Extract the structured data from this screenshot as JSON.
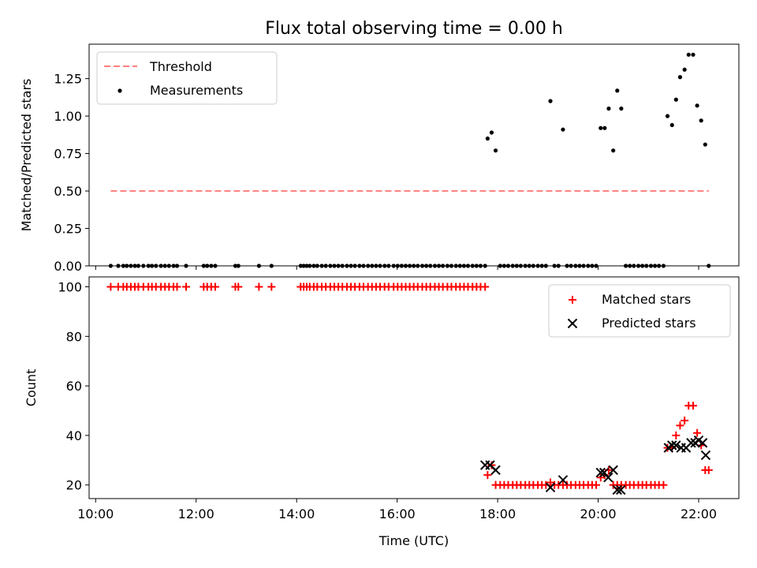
{
  "title": "Flux total observing time = 0.00 h",
  "colors": {
    "threshold": "#ff7f7f",
    "measurement": "#000000",
    "matched": "#ff0000",
    "predicted": "#000000"
  },
  "chart_data": [
    {
      "type": "scatter",
      "ylabel": "Matched/Predicted stars",
      "ylim": [
        0,
        1.48
      ],
      "xlim": [
        9.87,
        22.8
      ],
      "yticks": [
        "0.00",
        "0.25",
        "0.50",
        "0.75",
        "1.00",
        "1.25"
      ],
      "grid": false,
      "legend": {
        "position": "top-left",
        "entries": [
          "Threshold",
          "Measurements"
        ]
      },
      "threshold": {
        "name": "Threshold",
        "value": 0.5,
        "x_range": [
          10.3,
          22.2
        ]
      },
      "series": [
        {
          "name": "Measurements",
          "x": [
            10.3,
            10.45,
            10.55,
            10.62,
            10.7,
            10.78,
            10.85,
            10.95,
            11.05,
            11.12,
            11.2,
            11.3,
            11.38,
            11.46,
            11.55,
            11.62,
            11.8,
            12.15,
            12.22,
            12.3,
            12.38,
            12.78,
            12.84,
            13.25,
            13.5,
            14.08,
            14.14,
            14.2,
            14.26,
            14.34,
            14.41,
            14.5,
            14.58,
            14.67,
            14.75,
            14.83,
            14.91,
            15.0,
            15.08,
            15.16,
            15.25,
            15.33,
            15.42,
            15.5,
            15.58,
            15.66,
            15.75,
            15.83,
            15.93,
            16.01,
            16.09,
            16.17,
            16.25,
            16.33,
            16.41,
            16.5,
            16.58,
            16.66,
            16.75,
            16.83,
            16.91,
            17.0,
            17.08,
            17.17,
            17.25,
            17.33,
            17.41,
            17.5,
            17.58,
            17.66,
            17.75,
            17.8,
            17.88,
            17.96,
            18.05,
            18.13,
            18.21,
            18.3,
            18.38,
            18.46,
            18.55,
            18.63,
            18.71,
            18.8,
            18.88,
            18.96,
            19.05,
            19.13,
            19.21,
            19.3,
            19.38,
            19.46,
            19.55,
            19.63,
            19.71,
            19.8,
            19.88,
            19.96,
            20.05,
            20.13,
            20.21,
            20.3,
            20.38,
            20.46,
            20.55,
            20.63,
            20.71,
            20.8,
            20.88,
            20.96,
            21.05,
            21.13,
            21.21,
            21.3,
            21.38,
            21.47,
            21.55,
            21.63,
            21.72,
            21.8,
            21.89,
            21.97,
            22.05,
            22.13,
            22.2
          ],
          "y": [
            0,
            0,
            0,
            0,
            0,
            0,
            0,
            0,
            0,
            0,
            0,
            0,
            0,
            0,
            0,
            0,
            0,
            0,
            0,
            0,
            0,
            0,
            0,
            0,
            0,
            0,
            0,
            0,
            0,
            0,
            0,
            0,
            0,
            0,
            0,
            0,
            0,
            0,
            0,
            0,
            0,
            0,
            0,
            0,
            0,
            0,
            0,
            0,
            0,
            0,
            0,
            0,
            0,
            0,
            0,
            0,
            0,
            0,
            0,
            0,
            0,
            0,
            0,
            0,
            0,
            0,
            0,
            0,
            0,
            0,
            0,
            0.85,
            0.89,
            0.77,
            0,
            0,
            0,
            0,
            0,
            0,
            0,
            0,
            0,
            0,
            0,
            0,
            1.1,
            0,
            0,
            0.91,
            0,
            0,
            0,
            0,
            0,
            0,
            0,
            0,
            0.92,
            0.92,
            1.05,
            0.77,
            1.17,
            1.05,
            0,
            0,
            0,
            0,
            0,
            0,
            0,
            0,
            0,
            0,
            1.0,
            0.94,
            1.11,
            1.26,
            1.31,
            1.41,
            1.41,
            1.07,
            0.97,
            0.81,
            0
          ]
        }
      ]
    },
    {
      "type": "scatter",
      "xlabel": "Time (UTC)",
      "ylabel": "Count",
      "ylim": [
        14.5,
        104
      ],
      "xlim": [
        9.87,
        22.8
      ],
      "yticks": [
        "20",
        "40",
        "60",
        "80",
        "100"
      ],
      "xticks": [
        "10:00",
        "12:00",
        "14:00",
        "16:00",
        "18:00",
        "20:00",
        "22:00"
      ],
      "grid": false,
      "legend": {
        "position": "top-right",
        "entries": [
          "Matched stars",
          "Predicted stars"
        ]
      },
      "series": [
        {
          "name": "Matched stars",
          "x": [
            10.3,
            10.45,
            10.55,
            10.62,
            10.7,
            10.78,
            10.85,
            10.95,
            11.05,
            11.12,
            11.2,
            11.3,
            11.38,
            11.46,
            11.55,
            11.62,
            11.8,
            12.15,
            12.22,
            12.3,
            12.38,
            12.78,
            12.84,
            13.25,
            13.5,
            14.08,
            14.14,
            14.2,
            14.26,
            14.34,
            14.41,
            14.5,
            14.58,
            14.67,
            14.75,
            14.83,
            14.91,
            15.0,
            15.08,
            15.16,
            15.25,
            15.33,
            15.42,
            15.5,
            15.58,
            15.66,
            15.75,
            15.83,
            15.93,
            16.01,
            16.09,
            16.17,
            16.25,
            16.33,
            16.41,
            16.5,
            16.58,
            16.66,
            16.75,
            16.83,
            16.91,
            17.0,
            17.08,
            17.17,
            17.25,
            17.33,
            17.41,
            17.5,
            17.58,
            17.66,
            17.75,
            17.8,
            17.88,
            17.96,
            18.05,
            18.13,
            18.21,
            18.3,
            18.38,
            18.46,
            18.55,
            18.63,
            18.71,
            18.8,
            18.88,
            18.96,
            19.05,
            19.13,
            19.21,
            19.3,
            19.38,
            19.46,
            19.55,
            19.63,
            19.71,
            19.8,
            19.88,
            19.96,
            20.05,
            20.13,
            20.21,
            20.3,
            20.38,
            20.46,
            20.55,
            20.63,
            20.71,
            20.8,
            20.88,
            20.96,
            21.05,
            21.13,
            21.21,
            21.3,
            21.38,
            21.47,
            21.55,
            21.63,
            21.72,
            21.8,
            21.89,
            21.97,
            22.05,
            22.13,
            22.2
          ],
          "y": [
            100,
            100,
            100,
            100,
            100,
            100,
            100,
            100,
            100,
            100,
            100,
            100,
            100,
            100,
            100,
            100,
            100,
            100,
            100,
            100,
            100,
            100,
            100,
            100,
            100,
            100,
            100,
            100,
            100,
            100,
            100,
            100,
            100,
            100,
            100,
            100,
            100,
            100,
            100,
            100,
            100,
            100,
            100,
            100,
            100,
            100,
            100,
            100,
            100,
            100,
            100,
            100,
            100,
            100,
            100,
            100,
            100,
            100,
            100,
            100,
            100,
            100,
            100,
            100,
            100,
            100,
            100,
            100,
            100,
            100,
            100,
            24,
            28,
            20,
            20,
            20,
            20,
            20,
            20,
            20,
            20,
            20,
            20,
            20,
            20,
            20,
            21,
            20,
            20,
            20,
            20,
            20,
            20,
            20,
            20,
            20,
            20,
            20,
            23,
            24,
            26,
            20,
            20,
            20,
            20,
            20,
            20,
            20,
            20,
            20,
            20,
            20,
            20,
            20,
            35,
            35,
            40,
            44,
            46,
            52,
            52,
            41,
            36,
            26,
            26
          ]
        },
        {
          "name": "Predicted stars",
          "x": [
            17.75,
            17.85,
            17.96,
            19.05,
            19.3,
            20.05,
            20.12,
            20.2,
            20.3,
            20.38,
            20.45,
            21.4,
            21.47,
            21.55,
            21.65,
            21.75,
            21.85,
            21.93,
            22.0,
            22.08,
            22.14
          ],
          "y": [
            28,
            28,
            26,
            19,
            22,
            25,
            25,
            23,
            26,
            18,
            18,
            35,
            36,
            36,
            35,
            35,
            37,
            37,
            38,
            37,
            32
          ]
        }
      ]
    }
  ]
}
